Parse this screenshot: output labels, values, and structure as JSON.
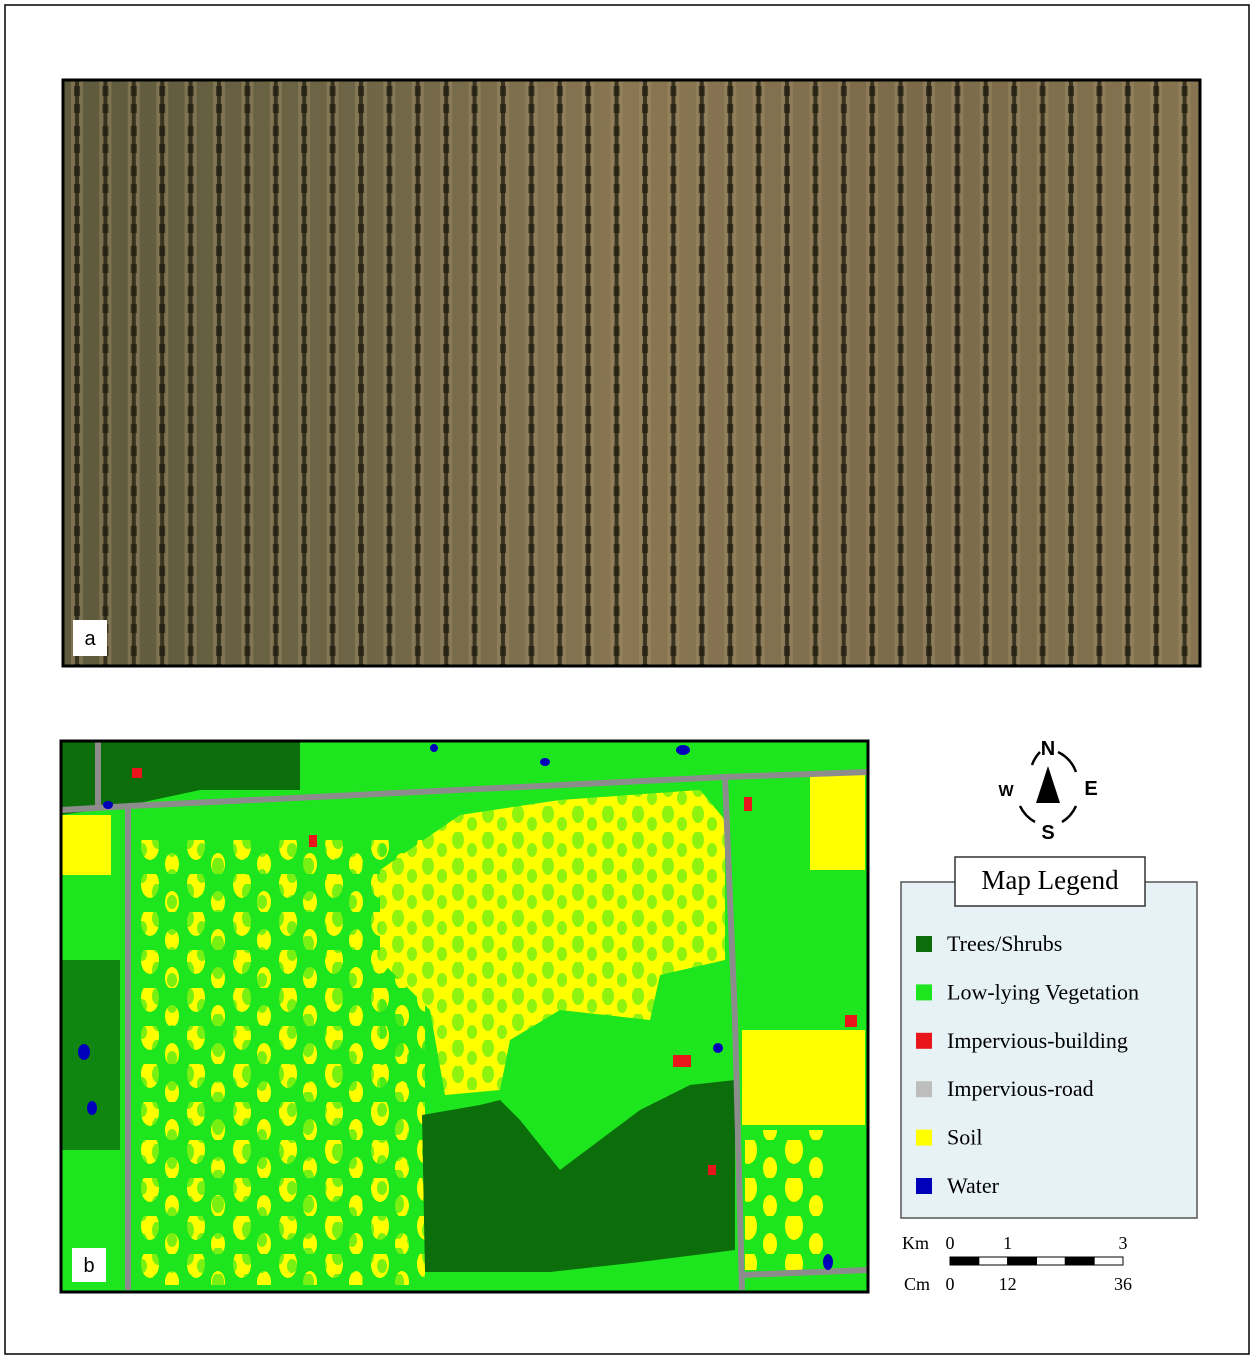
{
  "panels": [
    {
      "label": "a"
    },
    {
      "label": "b"
    }
  ],
  "compass": {
    "north": "N",
    "east": "E",
    "south": "S",
    "west": "W"
  },
  "legend": {
    "title": "Map Legend",
    "items": [
      {
        "label": "Trees/Shrubs",
        "color": "#0b6e0b"
      },
      {
        "label": "Low-lying Vegetation",
        "color": "#1ee61e"
      },
      {
        "label": "Impervious-building",
        "color": "#e8161b"
      },
      {
        "label": "Impervious-road",
        "color": "#bdbdbd"
      },
      {
        "label": "Soil",
        "color": "#ffff00"
      },
      {
        "label": "Water",
        "color": "#0000bb"
      }
    ]
  },
  "scale_bar": {
    "km": {
      "unit": "Km",
      "ticks": [
        0,
        1,
        3
      ]
    },
    "cm": {
      "unit": "Cm",
      "ticks": [
        0,
        12,
        36
      ]
    }
  }
}
